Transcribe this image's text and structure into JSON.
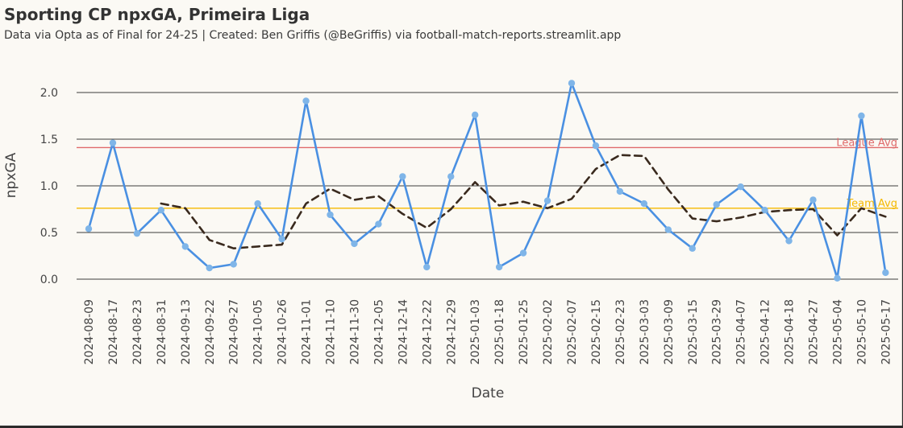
{
  "chart_data": {
    "type": "line",
    "title": "Sporting CP npxGA, Primeira Liga",
    "subtitle": "Data via Opta as of Final for 24-25 | Created: Ben Griffis (@BeGriffis) via football-match-reports.streamlit.app",
    "xlabel": "Date",
    "ylabel": "npxGA",
    "ylim": [
      -0.02,
      2.15
    ],
    "yticks": [
      0.0,
      0.5,
      1.0,
      1.5,
      2.0
    ],
    "ytick_labels": [
      "0.0",
      "0.5",
      "1.0",
      "1.5",
      "2.0"
    ],
    "grid": "horizontal",
    "legend": "none",
    "categories": [
      "2024-08-09",
      "2024-08-17",
      "2024-08-23",
      "2024-08-31",
      "2024-09-13",
      "2024-09-22",
      "2024-09-27",
      "2024-10-05",
      "2024-10-26",
      "2024-11-01",
      "2024-11-10",
      "2024-11-30",
      "2024-12-05",
      "2024-12-14",
      "2024-12-22",
      "2024-12-29",
      "2025-01-03",
      "2025-01-18",
      "2025-01-25",
      "2025-02-02",
      "2025-02-07",
      "2025-02-15",
      "2025-02-23",
      "2025-03-03",
      "2025-03-09",
      "2025-03-15",
      "2025-03-29",
      "2025-04-07",
      "2025-04-12",
      "2025-04-18",
      "2025-04-27",
      "2025-05-04",
      "2025-05-10",
      "2025-05-17"
    ],
    "series": [
      {
        "style": "solid",
        "color": "#4a90e2",
        "marker_color": "#7fb5e8",
        "values": [
          0.54,
          1.46,
          0.49,
          0.74,
          0.35,
          0.12,
          0.16,
          0.81,
          0.43,
          1.91,
          0.69,
          0.38,
          0.59,
          1.1,
          0.13,
          1.1,
          1.76,
          0.13,
          0.28,
          0.84,
          2.1,
          1.43,
          0.94,
          0.81,
          0.53,
          0.33,
          0.8,
          0.99,
          0.74,
          0.41,
          0.85,
          0.01,
          1.75,
          0.07
        ]
      },
      {
        "style": "dashed",
        "color": "#3a2a1e",
        "values": [
          null,
          null,
          null,
          0.81,
          0.76,
          0.42,
          0.33,
          0.35,
          0.37,
          0.81,
          0.97,
          0.85,
          0.89,
          0.7,
          0.55,
          0.75,
          1.04,
          0.79,
          0.83,
          0.76,
          0.86,
          1.18,
          1.33,
          1.32,
          0.96,
          0.65,
          0.62,
          0.66,
          0.72,
          0.74,
          0.75,
          0.47,
          0.76,
          0.67
        ]
      }
    ],
    "reference_lines": [
      {
        "label": "League Avg",
        "value": 1.41,
        "color": "#e06b6b"
      },
      {
        "label": "Team Avg",
        "value": 0.76,
        "color": "#f5b900"
      }
    ]
  }
}
